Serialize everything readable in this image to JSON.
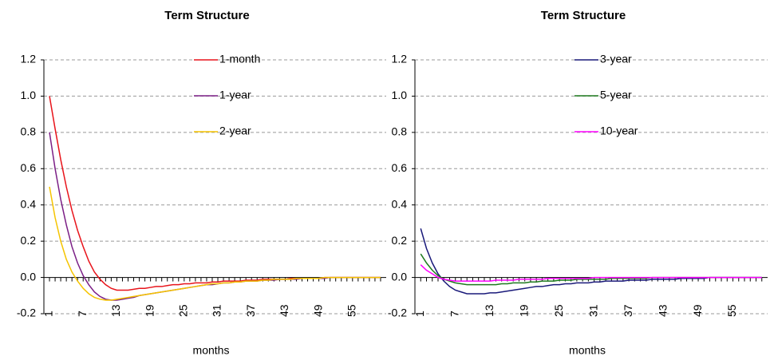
{
  "chart_data": [
    {
      "type": "line",
      "title": "Term Structure",
      "x_label": "months",
      "x": [
        1,
        2,
        3,
        4,
        5,
        6,
        7,
        8,
        9,
        10,
        11,
        12,
        13,
        14,
        15,
        16,
        17,
        18,
        19,
        20,
        21,
        22,
        23,
        24,
        25,
        26,
        27,
        28,
        29,
        30,
        31,
        32,
        33,
        34,
        35,
        36,
        37,
        38,
        39,
        40,
        41,
        42,
        43,
        44,
        45,
        46,
        47,
        48,
        49,
        50,
        51,
        52,
        53,
        54,
        55,
        56,
        57,
        58,
        59,
        60
      ],
      "xlim": [
        0,
        61
      ],
      "xticks": [
        1,
        7,
        13,
        19,
        25,
        31,
        37,
        43,
        49,
        55
      ],
      "ylim": [
        -0.2,
        1.2
      ],
      "yticks": [
        -0.2,
        {
          "value": 0,
          "label": "0.0"
        },
        0.2,
        0.4,
        0.6,
        0.8,
        {
          "value": 1,
          "label": "1.0"
        },
        1.2
      ],
      "grid": true,
      "legend": "top",
      "series": [
        {
          "name": "1-month",
          "color": "#e8141b",
          "values": [
            1.0,
            0.82,
            0.65,
            0.5,
            0.37,
            0.26,
            0.17,
            0.09,
            0.03,
            -0.01,
            -0.04,
            -0.06,
            -0.07,
            -0.07,
            -0.07,
            -0.065,
            -0.06,
            -0.06,
            -0.055,
            -0.05,
            -0.05,
            -0.045,
            -0.04,
            -0.04,
            -0.035,
            -0.035,
            -0.03,
            -0.03,
            -0.03,
            -0.025,
            -0.025,
            -0.02,
            -0.02,
            -0.02,
            -0.02,
            -0.015,
            -0.015,
            -0.015,
            -0.01,
            -0.01,
            -0.01,
            -0.01,
            -0.01,
            -0.005,
            -0.005,
            -0.005,
            -0.005,
            -0.005,
            -0.005,
            0,
            0,
            0,
            0,
            0,
            0,
            0,
            0,
            0,
            0,
            0
          ]
        },
        {
          "name": "1-year",
          "color": "#7b1f86",
          "values": [
            0.8,
            0.6,
            0.43,
            0.29,
            0.17,
            0.08,
            0.01,
            -0.04,
            -0.08,
            -0.105,
            -0.12,
            -0.125,
            -0.125,
            -0.12,
            -0.115,
            -0.11,
            -0.1,
            -0.095,
            -0.09,
            -0.085,
            -0.08,
            -0.075,
            -0.07,
            -0.065,
            -0.06,
            -0.055,
            -0.05,
            -0.045,
            -0.04,
            -0.04,
            -0.035,
            -0.03,
            -0.03,
            -0.025,
            -0.025,
            -0.02,
            -0.02,
            -0.02,
            -0.015,
            -0.015,
            -0.015,
            -0.01,
            -0.01,
            -0.01,
            -0.01,
            -0.005,
            -0.005,
            -0.005,
            -0.005,
            -0.005,
            0,
            0,
            0,
            0,
            0,
            0,
            0,
            0,
            0,
            0
          ]
        },
        {
          "name": "2-year",
          "color": "#f5c400",
          "values": [
            0.5,
            0.33,
            0.2,
            0.1,
            0.03,
            -0.02,
            -0.06,
            -0.09,
            -0.11,
            -0.12,
            -0.125,
            -0.125,
            -0.12,
            -0.115,
            -0.11,
            -0.105,
            -0.1,
            -0.095,
            -0.09,
            -0.085,
            -0.08,
            -0.075,
            -0.07,
            -0.065,
            -0.06,
            -0.055,
            -0.05,
            -0.045,
            -0.04,
            -0.035,
            -0.035,
            -0.03,
            -0.03,
            -0.025,
            -0.025,
            -0.02,
            -0.02,
            -0.02,
            -0.015,
            -0.015,
            -0.01,
            -0.01,
            -0.01,
            -0.01,
            -0.005,
            -0.005,
            -0.005,
            -0.005,
            -0.005,
            0,
            0,
            0,
            0,
            0,
            0,
            0,
            0,
            0,
            0,
            0
          ]
        }
      ]
    },
    {
      "type": "line",
      "title": "Term Structure",
      "x_label": "months",
      "x": [
        1,
        2,
        3,
        4,
        5,
        6,
        7,
        8,
        9,
        10,
        11,
        12,
        13,
        14,
        15,
        16,
        17,
        18,
        19,
        20,
        21,
        22,
        23,
        24,
        25,
        26,
        27,
        28,
        29,
        30,
        31,
        32,
        33,
        34,
        35,
        36,
        37,
        38,
        39,
        40,
        41,
        42,
        43,
        44,
        45,
        46,
        47,
        48,
        49,
        50,
        51,
        52,
        53,
        54,
        55,
        56,
        57,
        58,
        59,
        60
      ],
      "xlim": [
        0,
        61
      ],
      "xticks": [
        1,
        7,
        13,
        19,
        25,
        31,
        37,
        43,
        49,
        55
      ],
      "ylim": [
        -0.2,
        1.2
      ],
      "yticks": [
        -0.2,
        {
          "value": 0,
          "label": "0.0"
        },
        0.2,
        0.4,
        0.6,
        0.8,
        {
          "value": 1,
          "label": "1.0"
        },
        1.2
      ],
      "grid": true,
      "legend": "top",
      "series": [
        {
          "name": "3-year",
          "color": "#1a1a7a",
          "values": [
            0.27,
            0.16,
            0.08,
            0.02,
            -0.02,
            -0.05,
            -0.07,
            -0.08,
            -0.09,
            -0.09,
            -0.09,
            -0.09,
            -0.085,
            -0.085,
            -0.08,
            -0.075,
            -0.07,
            -0.065,
            -0.06,
            -0.055,
            -0.05,
            -0.05,
            -0.045,
            -0.04,
            -0.04,
            -0.035,
            -0.035,
            -0.03,
            -0.03,
            -0.03,
            -0.025,
            -0.025,
            -0.02,
            -0.02,
            -0.02,
            -0.02,
            -0.015,
            -0.015,
            -0.015,
            -0.015,
            -0.01,
            -0.01,
            -0.01,
            -0.01,
            -0.01,
            -0.005,
            -0.005,
            -0.005,
            -0.005,
            -0.005,
            0,
            0,
            0,
            0,
            0,
            0,
            0,
            0,
            0,
            0
          ]
        },
        {
          "name": "5-year",
          "color": "#1e7a1e",
          "values": [
            0.13,
            0.08,
            0.04,
            0.01,
            -0.01,
            -0.02,
            -0.03,
            -0.035,
            -0.04,
            -0.04,
            -0.04,
            -0.04,
            -0.04,
            -0.04,
            -0.035,
            -0.035,
            -0.03,
            -0.03,
            -0.03,
            -0.025,
            -0.025,
            -0.02,
            -0.02,
            -0.02,
            -0.015,
            -0.015,
            -0.015,
            -0.01,
            -0.01,
            -0.01,
            -0.01,
            -0.01,
            -0.01,
            -0.005,
            -0.005,
            -0.005,
            -0.005,
            -0.005,
            -0.005,
            -0.005,
            0,
            0,
            0,
            0,
            0,
            0,
            0,
            0,
            0,
            0,
            0,
            0,
            0,
            0,
            0,
            0,
            0,
            0,
            0,
            0
          ]
        },
        {
          "name": "10-year",
          "color": "#ff00ff",
          "values": [
            0.07,
            0.04,
            0.02,
            0,
            -0.01,
            -0.015,
            -0.02,
            -0.02,
            -0.02,
            -0.02,
            -0.02,
            -0.02,
            -0.02,
            -0.015,
            -0.015,
            -0.015,
            -0.015,
            -0.01,
            -0.01,
            -0.01,
            -0.01,
            -0.01,
            -0.005,
            -0.005,
            -0.005,
            -0.005,
            -0.005,
            -0.005,
            -0.005,
            -0.005,
            0,
            0,
            0,
            0,
            0,
            0,
            0,
            0,
            0,
            0,
            0,
            0,
            0,
            0,
            0,
            0,
            0,
            0,
            0,
            0,
            0,
            0,
            0,
            0,
            0,
            0,
            0,
            0,
            0,
            0
          ]
        }
      ]
    }
  ]
}
